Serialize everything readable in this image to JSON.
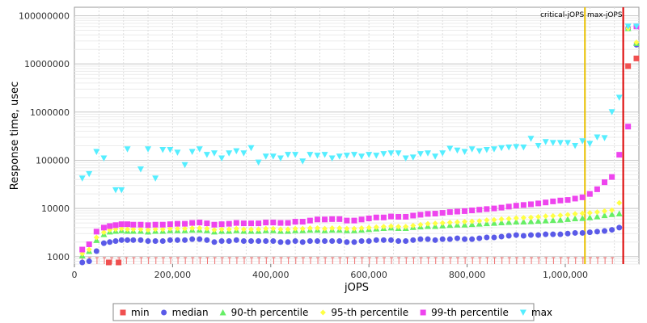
{
  "chart_data": {
    "type": "scatter",
    "title": "",
    "xlabel": "jOPS",
    "ylabel": "Response time, usec",
    "x_scale": "linear",
    "y_scale": "log",
    "xlim": [
      0,
      1150000
    ],
    "ylim": [
      700,
      150000000
    ],
    "x_ticks": [
      0,
      200000,
      400000,
      600000,
      800000,
      1000000
    ],
    "x_tick_labels": [
      "0",
      "200,000",
      "400,000",
      "600,000",
      "800,000",
      "1,000,000"
    ],
    "y_ticks": [
      1000,
      10000,
      100000,
      1000000,
      10000000,
      100000000
    ],
    "y_tick_labels": [
      "1000",
      "10000",
      "100000",
      "1000000",
      "10000000",
      "100000000"
    ],
    "grid": true,
    "legend_position": "bottom",
    "reference_lines": [
      {
        "name": "critical-jOPS",
        "x": 1040000,
        "color": "#e8c000"
      },
      {
        "name": "max-jOPS",
        "x": 1118000,
        "color": "#dd0000"
      }
    ],
    "series": [
      {
        "name": "min",
        "color": "#f05050",
        "marker": "square",
        "x": [
          70000,
          90000,
          1128000,
          1145000
        ],
        "y": [
          750,
          750,
          9000000,
          13000000
        ]
      },
      {
        "name": "median",
        "color": "#5a5ae8",
        "marker": "circle",
        "x": [
          16000,
          30000,
          45000,
          60000,
          72000,
          84000,
          96000,
          108000,
          120000,
          135000,
          150000,
          165000,
          180000,
          195000,
          210000,
          225000,
          240000,
          255000,
          270000,
          285000,
          300000,
          315000,
          330000,
          345000,
          360000,
          375000,
          390000,
          405000,
          420000,
          435000,
          450000,
          465000,
          480000,
          495000,
          510000,
          525000,
          540000,
          555000,
          570000,
          585000,
          600000,
          615000,
          630000,
          645000,
          660000,
          675000,
          690000,
          705000,
          720000,
          735000,
          750000,
          765000,
          780000,
          795000,
          810000,
          825000,
          840000,
          855000,
          870000,
          885000,
          900000,
          915000,
          930000,
          945000,
          960000,
          975000,
          990000,
          1005000,
          1020000,
          1035000,
          1050000,
          1065000,
          1080000,
          1095000,
          1110000,
          1128000,
          1145000
        ],
        "y": [
          700,
          800,
          1300,
          1900,
          2000,
          2100,
          2200,
          2200,
          2200,
          2200,
          2100,
          2100,
          2100,
          2200,
          2200,
          2200,
          2300,
          2300,
          2200,
          2000,
          2100,
          2100,
          2200,
          2100,
          2100,
          2100,
          2100,
          2100,
          2000,
          2000,
          2100,
          2000,
          2100,
          2100,
          2100,
          2100,
          2100,
          2000,
          2000,
          2100,
          2100,
          2200,
          2200,
          2200,
          2100,
          2100,
          2200,
          2300,
          2300,
          2200,
          2300,
          2300,
          2400,
          2300,
          2300,
          2400,
          2500,
          2500,
          2600,
          2700,
          2800,
          2700,
          2800,
          2800,
          2900,
          2900,
          2900,
          3000,
          3100,
          3100,
          3200,
          3300,
          3400,
          3600,
          4000,
          55000000,
          25000000
        ]
      },
      {
        "name": "90-th percentile",
        "color": "#66ee66",
        "marker": "triangle-up",
        "x": [
          16000,
          30000,
          45000,
          60000,
          72000,
          84000,
          96000,
          108000,
          120000,
          135000,
          150000,
          165000,
          180000,
          195000,
          210000,
          225000,
          240000,
          255000,
          270000,
          285000,
          300000,
          315000,
          330000,
          345000,
          360000,
          375000,
          390000,
          405000,
          420000,
          435000,
          450000,
          465000,
          480000,
          495000,
          510000,
          525000,
          540000,
          555000,
          570000,
          585000,
          600000,
          615000,
          630000,
          645000,
          660000,
          675000,
          690000,
          705000,
          720000,
          735000,
          750000,
          765000,
          780000,
          795000,
          810000,
          825000,
          840000,
          855000,
          870000,
          885000,
          900000,
          915000,
          930000,
          945000,
          960000,
          975000,
          990000,
          1005000,
          1020000,
          1035000,
          1050000,
          1065000,
          1080000,
          1095000,
          1110000,
          1128000,
          1145000
        ],
        "y": [
          1050,
          1300,
          2200,
          2900,
          3300,
          3400,
          3500,
          3400,
          3400,
          3400,
          3300,
          3400,
          3400,
          3500,
          3500,
          3500,
          3600,
          3600,
          3500,
          3300,
          3400,
          3400,
          3500,
          3400,
          3400,
          3400,
          3500,
          3500,
          3400,
          3400,
          3500,
          3500,
          3600,
          3600,
          3500,
          3600,
          3600,
          3500,
          3500,
          3600,
          3700,
          3800,
          3900,
          4000,
          3900,
          3900,
          4100,
          4200,
          4300,
          4300,
          4400,
          4500,
          4600,
          4600,
          4700,
          4800,
          4900,
          5000,
          5100,
          5200,
          5300,
          5300,
          5400,
          5500,
          5600,
          5700,
          5800,
          6000,
          6200,
          6300,
          6500,
          6800,
          7200,
          7600,
          7800,
          55000000,
          27000000
        ]
      },
      {
        "name": "95-th percentile",
        "color": "#ffff44",
        "marker": "diamond",
        "x": [
          16000,
          30000,
          45000,
          60000,
          72000,
          84000,
          96000,
          108000,
          120000,
          135000,
          150000,
          165000,
          180000,
          195000,
          210000,
          225000,
          240000,
          255000,
          270000,
          285000,
          300000,
          315000,
          330000,
          345000,
          360000,
          375000,
          390000,
          405000,
          420000,
          435000,
          450000,
          465000,
          480000,
          495000,
          510000,
          525000,
          540000,
          555000,
          570000,
          585000,
          600000,
          615000,
          630000,
          645000,
          660000,
          675000,
          690000,
          705000,
          720000,
          735000,
          750000,
          765000,
          780000,
          795000,
          810000,
          825000,
          840000,
          855000,
          870000,
          885000,
          900000,
          915000,
          930000,
          945000,
          960000,
          975000,
          990000,
          1005000,
          1020000,
          1035000,
          1050000,
          1065000,
          1080000,
          1095000,
          1110000,
          1128000,
          1145000
        ],
        "y": [
          1150,
          1400,
          2500,
          3200,
          3600,
          3700,
          3800,
          3700,
          3700,
          3700,
          3600,
          3700,
          3700,
          3800,
          3800,
          3800,
          3900,
          3900,
          3800,
          3600,
          3700,
          3700,
          3800,
          3700,
          3700,
          3700,
          3800,
          3800,
          3700,
          3700,
          3800,
          3800,
          3900,
          3900,
          3800,
          3900,
          3900,
          3800,
          3800,
          3900,
          4000,
          4100,
          4200,
          4300,
          4200,
          4200,
          4400,
          4600,
          4800,
          4900,
          5000,
          5100,
          5200,
          5300,
          5400,
          5500,
          5700,
          5800,
          6000,
          6100,
          6300,
          6400,
          6500,
          6700,
          6900,
          7000,
          7200,
          7400,
          7700,
          7900,
          8100,
          8400,
          8800,
          9200,
          13000,
          55000000,
          28000000
        ]
      },
      {
        "name": "99-th percentile",
        "color": "#ee44ee",
        "marker": "square",
        "x": [
          16000,
          30000,
          45000,
          60000,
          72000,
          84000,
          96000,
          108000,
          120000,
          135000,
          150000,
          165000,
          180000,
          195000,
          210000,
          225000,
          240000,
          255000,
          270000,
          285000,
          300000,
          315000,
          330000,
          345000,
          360000,
          375000,
          390000,
          405000,
          420000,
          435000,
          450000,
          465000,
          480000,
          495000,
          510000,
          525000,
          540000,
          555000,
          570000,
          585000,
          600000,
          615000,
          630000,
          645000,
          660000,
          675000,
          690000,
          705000,
          720000,
          735000,
          750000,
          765000,
          780000,
          795000,
          810000,
          825000,
          840000,
          855000,
          870000,
          885000,
          900000,
          915000,
          930000,
          945000,
          960000,
          975000,
          990000,
          1005000,
          1020000,
          1035000,
          1050000,
          1065000,
          1080000,
          1095000,
          1110000,
          1128000,
          1145000
        ],
        "y": [
          1400,
          1800,
          3300,
          4000,
          4300,
          4500,
          4700,
          4700,
          4600,
          4600,
          4500,
          4600,
          4600,
          4700,
          4800,
          4800,
          5000,
          5100,
          4900,
          4600,
          4700,
          4800,
          5000,
          4900,
          4900,
          4900,
          5100,
          5100,
          5000,
          5000,
          5300,
          5300,
          5600,
          5900,
          5900,
          6000,
          6000,
          5600,
          5600,
          5900,
          6200,
          6500,
          6500,
          6800,
          6700,
          6700,
          7100,
          7400,
          7700,
          7800,
          8100,
          8400,
          8600,
          8800,
          9100,
          9400,
          9700,
          10000,
          10400,
          10900,
          11400,
          11800,
          12200,
          12700,
          13300,
          14000,
          14600,
          15000,
          16000,
          17000,
          20000,
          25000,
          35000,
          45000,
          130000,
          500000,
          60000000
        ]
      },
      {
        "name": "max",
        "color": "#55eeff",
        "marker": "triangle-down",
        "x": [
          16000,
          30000,
          45000,
          60000,
          84000,
          96000,
          108000,
          135000,
          150000,
          165000,
          180000,
          195000,
          210000,
          225000,
          240000,
          255000,
          270000,
          285000,
          300000,
          315000,
          330000,
          345000,
          360000,
          375000,
          390000,
          405000,
          420000,
          435000,
          450000,
          465000,
          480000,
          495000,
          510000,
          525000,
          540000,
          555000,
          570000,
          585000,
          600000,
          615000,
          630000,
          645000,
          660000,
          675000,
          690000,
          705000,
          720000,
          735000,
          750000,
          765000,
          780000,
          795000,
          810000,
          825000,
          840000,
          855000,
          870000,
          885000,
          900000,
          915000,
          930000,
          945000,
          960000,
          975000,
          990000,
          1005000,
          1020000,
          1035000,
          1050000,
          1065000,
          1080000,
          1095000,
          1110000,
          1128000,
          1145000
        ],
        "y": [
          42000,
          52000,
          150000,
          110000,
          24000,
          24000,
          170000,
          65000,
          170000,
          42000,
          165000,
          165000,
          145000,
          80000,
          150000,
          170000,
          130000,
          140000,
          110000,
          140000,
          155000,
          140000,
          180000,
          90000,
          120000,
          120000,
          110000,
          130000,
          130000,
          95000,
          130000,
          125000,
          130000,
          110000,
          120000,
          125000,
          130000,
          120000,
          130000,
          125000,
          135000,
          140000,
          140000,
          110000,
          115000,
          135000,
          140000,
          120000,
          140000,
          175000,
          160000,
          150000,
          170000,
          155000,
          165000,
          170000,
          180000,
          185000,
          190000,
          185000,
          280000,
          200000,
          240000,
          230000,
          230000,
          230000,
          200000,
          250000,
          220000,
          300000,
          290000,
          1000000,
          2000000,
          60000000,
          60000000
        ]
      }
    ]
  }
}
